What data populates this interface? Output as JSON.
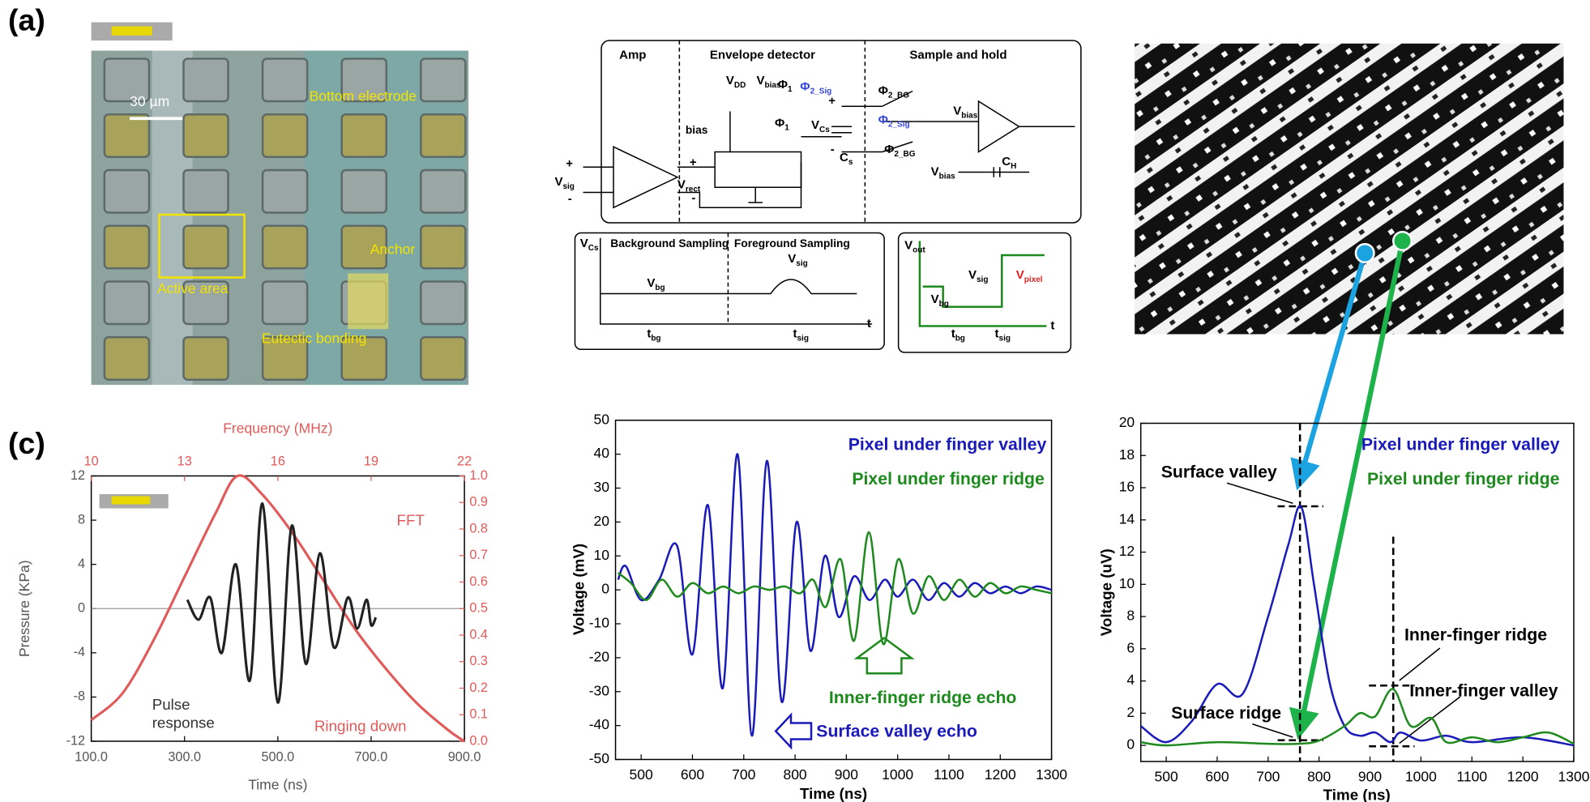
{
  "panel_labels": [
    "(a)",
    "(c)"
  ],
  "micrograph": {
    "scale_bar": "30 µm",
    "labels": [
      "Bottom electrode",
      "Active area",
      "Anchor",
      "Eutectic bonding"
    ]
  },
  "circuit": {
    "blocks": [
      "Amp",
      "Envelope detector",
      "Sample and hold"
    ],
    "labels": [
      {
        "text": "V",
        "sub": "DD"
      },
      {
        "text": "V",
        "sub": "bias"
      },
      {
        "text": "Φ",
        "sub": "1"
      },
      {
        "text": "Φ",
        "sub": "2_Sig",
        "color": "#3344dd"
      },
      {
        "text": "bias"
      },
      {
        "text": "Φ",
        "sub": "1"
      },
      {
        "text": "+"
      },
      {
        "text": "V",
        "sub": "Cs"
      },
      {
        "text": "-"
      },
      {
        "text": "C",
        "sub": "s"
      },
      {
        "text": "Φ",
        "sub": "2_BG"
      },
      {
        "text": "Φ",
        "sub": "2_Sig",
        "color": "#3344dd"
      },
      {
        "text": "Φ",
        "sub": "2_BG"
      },
      {
        "text": "V",
        "sub": "bias"
      },
      {
        "text": "V",
        "sub": "bias"
      },
      {
        "text": "C",
        "sub": "H"
      },
      {
        "text": "+"
      },
      {
        "text": "V",
        "sub": "sig"
      },
      {
        "text": "-"
      },
      {
        "text": "+"
      },
      {
        "text": "V",
        "sub": "rect"
      },
      {
        "text": "-"
      },
      {
        "text": "V",
        "sub": "Cs"
      },
      {
        "text": "Background Sampling"
      },
      {
        "text": "Foreground Sampling"
      },
      {
        "text": "V",
        "sub": "bg"
      },
      {
        "text": "V",
        "sub": "sig"
      },
      {
        "text": "t",
        "sub": "bg"
      },
      {
        "text": "t",
        "sub": "sig"
      },
      {
        "text": "t"
      },
      {
        "text": "V",
        "sub": "out"
      },
      {
        "text": "V",
        "sub": "sig"
      },
      {
        "text": "V",
        "sub": "pixel",
        "color": "#e02020"
      },
      {
        "text": "V",
        "sub": "bg"
      },
      {
        "text": "t",
        "sub": "bg"
      },
      {
        "text": "t",
        "sub": "sig"
      },
      {
        "text": "t"
      }
    ]
  },
  "chart_data": [
    {
      "type": "line",
      "xlabel": "Time (ns)",
      "ylabel": "Pressure (KPa)",
      "x2label": "Frequency (MHz)",
      "xlim": [
        100,
        900
      ],
      "xticks": [
        {
          "value": 100,
          "label": "100.0"
        },
        {
          "value": 300,
          "label": "300.0"
        },
        {
          "value": 500,
          "label": "500.0"
        },
        {
          "value": 700,
          "label": "700.0"
        },
        {
          "value": 900,
          "label": "900.0"
        }
      ],
      "ylim": [
        -12,
        12
      ],
      "yticks": [
        -12,
        -8,
        -4,
        0,
        4,
        8,
        12
      ],
      "y2lim": [
        0,
        1
      ],
      "y2ticks": [
        {
          "value": 0,
          "label": "0.0"
        },
        0.1,
        0.2,
        0.3,
        0.4,
        0.5,
        0.6,
        0.7,
        0.8,
        0.9,
        {
          "value": 1,
          "label": "1.0"
        }
      ],
      "x2lim": [
        10,
        22
      ],
      "x2ticks": [
        10,
        13,
        16,
        19,
        22
      ],
      "zero_line": true,
      "series": [
        {
          "color": "#e05a5a",
          "axis": "y2",
          "xaxis": "x2",
          "x": [
            10,
            11,
            12,
            13,
            14,
            14.7,
            15.5,
            16.5,
            17.5,
            18.5,
            19.5,
            20.5,
            21.5,
            22
          ],
          "values": [
            0.08,
            0.18,
            0.38,
            0.62,
            0.86,
            1.0,
            0.93,
            0.78,
            0.6,
            0.42,
            0.27,
            0.14,
            0.04,
            0.0
          ]
        },
        {
          "color": "#222222",
          "x": [
            306,
            330,
            355,
            380,
            410,
            440,
            467,
            500,
            530,
            560,
            590,
            620,
            650,
            670,
            690,
            700,
            710
          ],
          "values": [
            0.8,
            -1,
            1,
            -4,
            4,
            -6.5,
            9.5,
            -8.5,
            7.5,
            -5,
            5,
            -3.5,
            1,
            -1.8,
            0.8,
            -1.5,
            -0.8
          ]
        }
      ],
      "annotations": [
        {
          "text": "FFT",
          "color": "#e05a5a"
        },
        {
          "text": "Pulse",
          "color": "#333333"
        },
        {
          "text": "response",
          "color": "#333333"
        },
        {
          "text": "Ringing down",
          "color": "#e05a5a"
        }
      ]
    },
    {
      "type": "line",
      "xlabel": "Time (ns)",
      "ylabel": "Voltage (mV)",
      "xlim": [
        450,
        1300
      ],
      "xticks": [
        500,
        600,
        700,
        800,
        900,
        1000,
        1100,
        1200,
        1300
      ],
      "ylim": [
        -50,
        50
      ],
      "yticks": [
        -50,
        -40,
        -30,
        -20,
        -10,
        0,
        10,
        20,
        30,
        40,
        50
      ],
      "series": [
        {
          "name": "Pixel under finger valley",
          "color": "#1a1ab8",
          "x": [
            455,
            470,
            500,
            535,
            570,
            600,
            630,
            659,
            688,
            716,
            745,
            774,
            803,
            830,
            858,
            885,
            915,
            945,
            975,
            1000,
            1030,
            1060,
            1090,
            1120,
            1150,
            1180,
            1210,
            1240,
            1270,
            1300
          ],
          "values": [
            3,
            7,
            -3,
            3,
            13,
            -19,
            25,
            -29,
            40,
            -43,
            38,
            -33,
            20,
            -18,
            10,
            -8,
            4,
            -3,
            3,
            -2,
            3,
            -3,
            2,
            -2,
            2,
            -1,
            1,
            -1,
            1,
            0
          ]
        },
        {
          "name": "Pixel under finger ridge",
          "color": "#1e8a1e",
          "x": [
            455,
            480,
            510,
            540,
            570,
            600,
            630,
            660,
            690,
            720,
            750,
            780,
            810,
            835,
            860,
            889,
            915,
            944,
            972,
            1001,
            1030,
            1060,
            1090,
            1120,
            1150,
            1180,
            1210,
            1240,
            1270,
            1300
          ],
          "values": [
            5,
            2,
            -3,
            3,
            -2,
            2,
            -1,
            1,
            -1,
            1,
            0,
            1,
            -1,
            3,
            -5,
            9,
            -15,
            17,
            -16,
            9,
            -7,
            4,
            -3,
            3,
            -2,
            2,
            -1,
            1,
            0,
            -1
          ]
        }
      ],
      "annotations": [
        {
          "text": "Inner-finger ridge echo",
          "color": "#1e8a1e"
        },
        {
          "text": "Surface valley echo",
          "color": "#1a1ab8"
        }
      ]
    },
    {
      "type": "line",
      "xlabel": "Time (ns)",
      "ylabel": "Voltage (uV)",
      "xlim": [
        450,
        1300
      ],
      "xticks": [
        500,
        600,
        700,
        800,
        900,
        1000,
        1100,
        1200,
        1300
      ],
      "ylim": [
        -1,
        20
      ],
      "yticks": [
        0,
        2,
        4,
        6,
        8,
        10,
        12,
        14,
        16,
        18,
        20
      ],
      "series": [
        {
          "name": "Pixel under finger valley",
          "color": "#1a1ab8",
          "x": [
            450,
            500,
            550,
            600,
            650,
            700,
            740,
            765,
            790,
            820,
            850,
            880,
            910,
            940,
            960,
            1000,
            1050,
            1100,
            1200,
            1300
          ],
          "values": [
            1.2,
            0.2,
            1.5,
            3.8,
            3.2,
            8,
            12.5,
            14.8,
            10,
            4,
            1.2,
            0.6,
            0.8,
            0.2,
            0.8,
            0.3,
            0.6,
            0.2,
            0.5,
            0
          ]
        },
        {
          "name": "Pixel under finger ridge",
          "color": "#1e8a1e",
          "x": [
            450,
            500,
            600,
            700,
            760,
            800,
            850,
            880,
            910,
            945,
            980,
            1020,
            1050,
            1100,
            1150,
            1200,
            1250,
            1300
          ],
          "values": [
            0.2,
            0,
            0.2,
            0.1,
            0.1,
            0.3,
            1.2,
            2,
            1.8,
            3.5,
            1.2,
            1.7,
            0.2,
            0.5,
            0.2,
            0.5,
            0.8,
            0.1
          ]
        }
      ],
      "annotations": [
        {
          "text": "Surface valley",
          "color": "#000000"
        },
        {
          "text": "Surface ridge",
          "color": "#000000"
        },
        {
          "text": "Inner-finger ridge",
          "color": "#000000"
        },
        {
          "text": "Inner-finger valley",
          "color": "#000000"
        }
      ]
    }
  ]
}
